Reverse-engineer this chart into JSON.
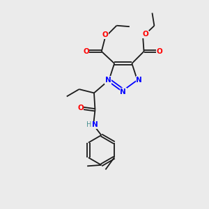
{
  "background_color": "#ebebeb",
  "bond_color": "#1a1a1a",
  "n_color": "#0000ff",
  "o_color": "#ff0000",
  "h_color": "#4a9090",
  "figsize": [
    3.0,
    3.0
  ],
  "dpi": 100,
  "xlim": [
    0,
    10
  ],
  "ylim": [
    0,
    10
  ]
}
